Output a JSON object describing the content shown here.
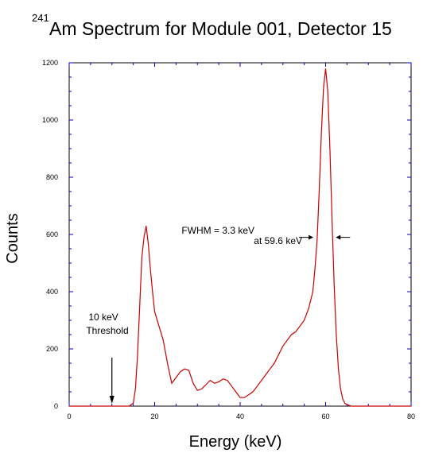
{
  "chart_data": {
    "type": "line",
    "title_superscript": "241",
    "title": "Am Spectrum for Module 001, Detector 15",
    "xlabel": "Energy (keV)",
    "ylabel": "Counts",
    "xlim": [
      0,
      80
    ],
    "ylim": [
      0,
      1200
    ],
    "xticks": [
      0,
      20,
      40,
      60,
      80
    ],
    "yticks": [
      0,
      200,
      400,
      600,
      800,
      1000,
      1200
    ],
    "grid": false,
    "line_color": "#cc0000",
    "axis_tick_color": "#0000cc",
    "series": [
      {
        "x": [
          0,
          14,
          15,
          15.5,
          16,
          16.5,
          17,
          17.5,
          18,
          18.5,
          19,
          19.5,
          20,
          21,
          22,
          23,
          24,
          25,
          26,
          27,
          28,
          29,
          30,
          31,
          32,
          33,
          34,
          35,
          36,
          37,
          38,
          39,
          40,
          41,
          42,
          43,
          44,
          45,
          46,
          47,
          48,
          49,
          50,
          51,
          52,
          53,
          54,
          55,
          56,
          57,
          57.5,
          58,
          58.5,
          59,
          59.5,
          60,
          60.5,
          61,
          61.5,
          62,
          62.5,
          63,
          63.5,
          64,
          64.5,
          65,
          66,
          80
        ],
        "y": [
          0,
          0,
          10,
          60,
          180,
          350,
          520,
          590,
          630,
          570,
          480,
          400,
          330,
          280,
          230,
          150,
          80,
          100,
          120,
          130,
          125,
          80,
          55,
          60,
          75,
          90,
          80,
          85,
          95,
          90,
          70,
          50,
          30,
          30,
          40,
          50,
          70,
          90,
          110,
          130,
          150,
          180,
          210,
          230,
          250,
          260,
          280,
          300,
          340,
          400,
          480,
          580,
          750,
          950,
          1110,
          1180,
          1100,
          900,
          650,
          420,
          250,
          130,
          60,
          25,
          10,
          5,
          0,
          0
        ]
      }
    ],
    "annotations": {
      "fwhm_line1": "FWHM = 3.3 keV",
      "fwhm_line2": "at 59.6 keV",
      "threshold_line1": "10 keV",
      "threshold_line2": "Threshold",
      "threshold_x": 10,
      "fwhm_left_x": 57.5,
      "fwhm_right_x": 62,
      "fwhm_y": 590
    }
  }
}
